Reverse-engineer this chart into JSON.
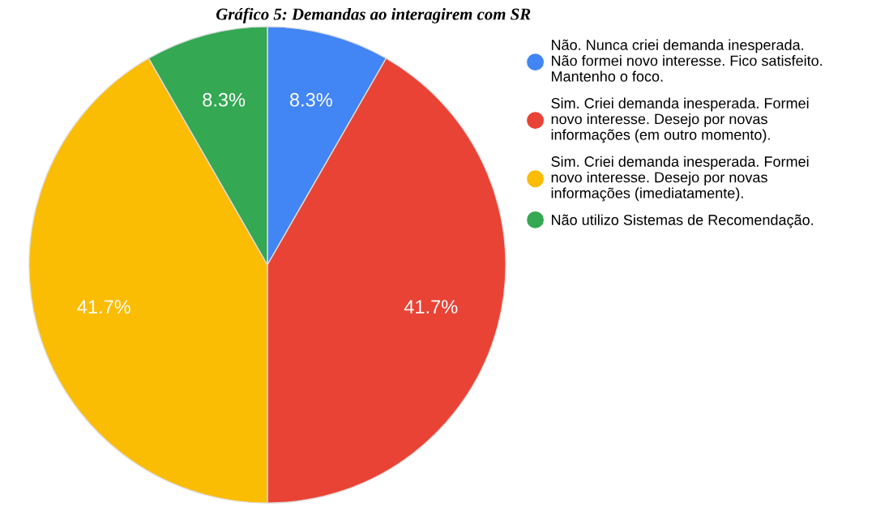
{
  "chart_data": {
    "type": "pie",
    "title": "Gráfico 5: Demandas ao interagirem com SR",
    "categories": [
      "Não. Nunca criei demanda inesperada.\nNão formei novo interesse. Fico satisfeito.\nMantenho o foco.",
      "Sim. Criei demanda inesperada. Formei\nnovo interesse. Desejo por novas\ninformações (em outro momento).",
      "Sim. Criei demanda inesperada. Formei\nnovo interesse. Desejo por novas\ninformações (imediatamente).",
      "Não utilizo Sistemas de Recomendação."
    ],
    "values": [
      8.3,
      41.7,
      41.7,
      8.3
    ],
    "colors": [
      "#4285f4",
      "#e94335",
      "#fbbc04",
      "#34a853"
    ],
    "value_labels": [
      "8.3%",
      "41.7%",
      "41.7%",
      "8.3%"
    ],
    "legend": "right"
  }
}
